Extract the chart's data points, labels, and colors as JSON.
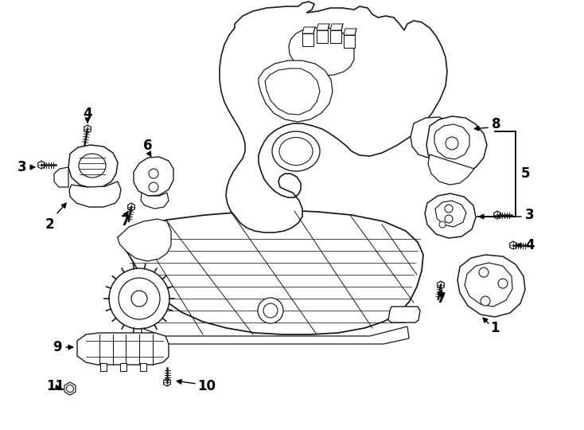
{
  "background_color": "#ffffff",
  "line_color": "#1a1a1a",
  "label_color": "#000000",
  "figsize": [
    7.34,
    5.4
  ],
  "dpi": 100
}
